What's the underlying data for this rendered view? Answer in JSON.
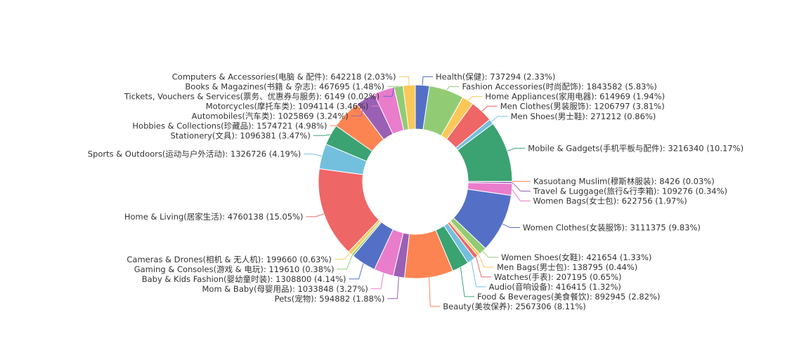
{
  "chart_data": {
    "type": "pie",
    "categories": [
      "Health(保健)",
      "Fashion Accessories(时尚配饰)",
      "Home Appliances(家用电器)",
      "Men Clothes(男装服饰)",
      "Men Shoes(男士鞋)",
      "Mobile & Gadgets(手机平板与配件)",
      "Kasuotang Muslim(穆斯林服装)",
      "Travel & Luggage(旅行&行李箱)",
      "Women Bags(女士包)",
      "Women Clothes(女装服饰)",
      "Women Shoes(女鞋)",
      "Men Bags(男士包)",
      "Watches(手表)",
      "Audio(音响设备)",
      "Food & Beverages(美食餐饮)",
      "Beauty(美妆保养)",
      "Pets(宠物)",
      "Mom & Baby(母婴用品)",
      "Baby & Kids Fashion(婴幼童时装)",
      "Gaming & Consoles(游戏 & 电玩)",
      "Cameras & Drones(相机 & 无人机)",
      "Home & Living(居家生活)",
      "Sports & Outdoors(运动与户外活动)",
      "Stationery(文具)",
      "Hobbies & Collections(珍藏品)",
      "Automobiles(汽车类)",
      "Motorcycles(摩托车类)",
      "Tickets, Vouchers & Services(票务、优惠券与服务)",
      "Books & Magazines(书籍 & 杂志)",
      "Computers & Accessories(电脑 & 配件)"
    ],
    "values": [
      737294,
      1843582,
      614969,
      1206797,
      271212,
      3216340,
      8426,
      109276,
      622756,
      3111375,
      421654,
      138795,
      207195,
      416415,
      892945,
      2567306,
      594882,
      1033848,
      1308800,
      119610,
      199660,
      4760138,
      1326726,
      1096381,
      1574721,
      1025869,
      1094114,
      6149,
      467695,
      642218
    ],
    "value_labels": [
      ": 737294 (2.33%)",
      ": 1843582 (5.83%)",
      ": 614969 (1.94%)",
      ": 1206797 (3.81%)",
      ": 271212 (0.86%)",
      ": 3216340 (10.17%)",
      ": 8426 (0.03%)",
      ": 109276 (0.34%)",
      ": 622756 (1.97%)",
      ": 3111375 (9.83%)",
      ": 421654 (1.33%)",
      ": 138795 (0.44%)",
      ": 207195 (0.65%)",
      ": 416415 (1.32%)",
      ": 892945 (2.82%)",
      ": 2567306 (8.11%)",
      ": 594882 (1.88%)",
      ": 1033848 (3.27%)",
      ": 1308800 (4.14%)",
      ": 119610 (0.38%)",
      ": 199660 (0.63%)",
      ": 4760138 (15.05%)",
      ": 1326726 (4.19%)",
      ": 1096381 (3.47%)",
      ": 1574721 (4.98%)",
      ": 1025869 (3.24%)",
      ": 1094114 (3.46%)",
      ": 6149 (0.02%)",
      ": 467695 (1.48%)",
      ": 642218 (2.03%)"
    ],
    "colors": [
      "#5470c6",
      "#91cc75",
      "#fac858",
      "#ee6666",
      "#73c0de",
      "#3ba272",
      "#fc8452",
      "#9a60b4",
      "#ea7ccc"
    ]
  }
}
